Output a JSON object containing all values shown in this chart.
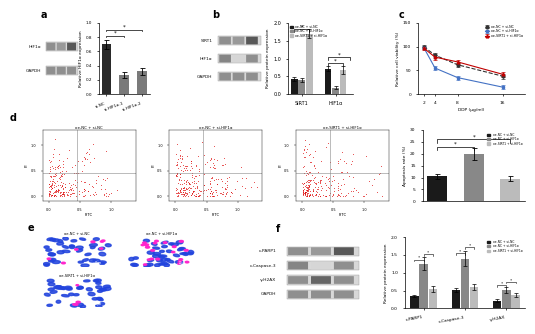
{
  "panel_a_bar": {
    "categories": [
      "si-NC",
      "si-HIF1α-1",
      "si-HIF1α-2"
    ],
    "values": [
      0.7,
      0.27,
      0.32
    ],
    "errors": [
      0.06,
      0.04,
      0.05
    ],
    "colors": [
      "#2a2a2a",
      "#7a7a7a",
      "#7a7a7a"
    ],
    "ylabel": "Relative HIF1α expression",
    "ylim": [
      0,
      1.0
    ],
    "yticks": [
      0.0,
      0.2,
      0.4,
      0.6,
      0.8,
      1.0
    ]
  },
  "panel_b_bar": {
    "groups": [
      "SIRT1",
      "HIF1α"
    ],
    "series": [
      "oe-NC + si-NC",
      "oe-NC + si-HIF1α",
      "oe-SIRT1 + si-HIF1α"
    ],
    "values": {
      "SIRT1": [
        0.42,
        0.4,
        1.7
      ],
      "HIF1α": [
        0.72,
        0.18,
        0.68
      ]
    },
    "errors": {
      "SIRT1": [
        0.05,
        0.05,
        0.12
      ],
      "HIF1α": [
        0.08,
        0.04,
        0.1
      ]
    },
    "colors": [
      "#1a1a1a",
      "#888888",
      "#bbbbbb"
    ],
    "ylabel": "Relative protein expression",
    "ylim": [
      0,
      2.0
    ],
    "yticks": [
      0.0,
      0.5,
      1.0,
      1.5,
      2.0
    ]
  },
  "panel_c": {
    "ddp": [
      2,
      4,
      8,
      16
    ],
    "series_order": [
      "oe-NC + si-NC",
      "oe-NC + si-HIF1α",
      "oe-SIRT1 + si-HIF1α"
    ],
    "series": {
      "oe-NC + si-NC": {
        "values": [
          100,
          82,
          62,
          38
        ],
        "errors": [
          3,
          4,
          4,
          5
        ],
        "color": "#333333",
        "linestyle": "--",
        "marker": "o"
      },
      "oe-NC + si-HIF1α": {
        "values": [
          98,
          55,
          35,
          15
        ],
        "errors": [
          3,
          5,
          4,
          4
        ],
        "color": "#4472c4",
        "linestyle": "-",
        "marker": "s"
      },
      "oe-SIRT1 + si-HIF1α": {
        "values": [
          97,
          78,
          68,
          42
        ],
        "errors": [
          3,
          5,
          5,
          5
        ],
        "color": "#c00000",
        "linestyle": "-",
        "marker": "^"
      }
    },
    "xlabel": "DDP (μg/ml)",
    "ylabel": "Relative cell viability (%)",
    "ylim": [
      0,
      150
    ],
    "yticks": [
      0,
      50,
      100,
      150
    ],
    "xticks": [
      2,
      4,
      8,
      16
    ]
  },
  "panel_d_bar": {
    "categories": [
      "oe-NC + si-NC",
      "oe-NC + si-HIF1α",
      "oe-SIRT1 + si-HIF1α"
    ],
    "values": [
      10.5,
      20.0,
      9.5
    ],
    "errors": [
      1.2,
      2.5,
      1.0
    ],
    "colors": [
      "#1a1a1a",
      "#888888",
      "#bbbbbb"
    ],
    "ylabel": "Apoptosis rate (%)",
    "ylim": [
      0,
      30
    ],
    "yticks": [
      0,
      5,
      10,
      15,
      20,
      25,
      30
    ]
  },
  "panel_f_bar": {
    "groups": [
      "c-PARP1",
      "c-Caspase-3",
      "γ-H2AX"
    ],
    "series": [
      "oe-NC + si-NC",
      "oe-NC + si-HIF1α",
      "oe-SIRT1 + si-HIF1α"
    ],
    "values": {
      "c-PARP1": [
        0.35,
        1.25,
        0.55
      ],
      "c-Caspase-3": [
        0.52,
        1.4,
        0.6
      ],
      "γ-H2AX": [
        0.22,
        0.52,
        0.38
      ]
    },
    "errors": {
      "c-PARP1": [
        0.04,
        0.18,
        0.08
      ],
      "c-Caspase-3": [
        0.06,
        0.2,
        0.08
      ],
      "γ-H2AX": [
        0.04,
        0.08,
        0.06
      ]
    },
    "colors": [
      "#1a1a1a",
      "#888888",
      "#bbbbbb"
    ],
    "ylabel": "Relative protein expression",
    "ylim": [
      0,
      2.0
    ],
    "yticks": [
      0.0,
      0.5,
      1.0,
      1.5,
      2.0
    ]
  },
  "bg_color": "#ffffff"
}
